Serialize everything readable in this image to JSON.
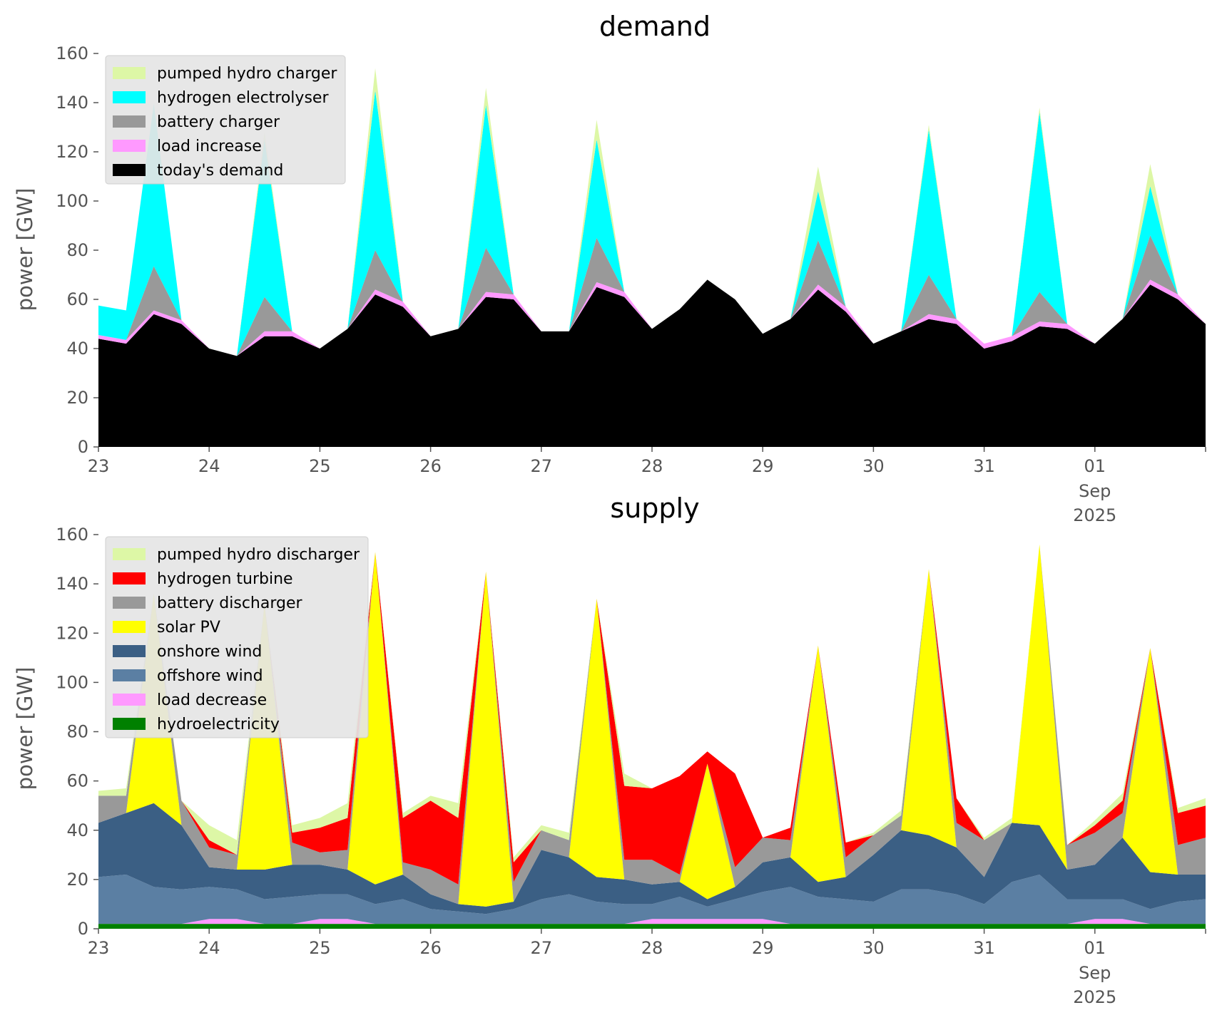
{
  "chart_data": [
    {
      "type": "area",
      "stacked": true,
      "title": "demand",
      "ylabel": "power [GW]",
      "ylim": [
        0,
        160
      ],
      "yticks": [
        0,
        20,
        40,
        60,
        80,
        100,
        120,
        140,
        160
      ],
      "xlim": [
        "2025-08-23",
        "2025-09-02"
      ],
      "xticks": [
        {
          "date": "2025-08-23",
          "label": "23"
        },
        {
          "date": "2025-08-24",
          "label": "24"
        },
        {
          "date": "2025-08-25",
          "label": "25"
        },
        {
          "date": "2025-08-26",
          "label": "26"
        },
        {
          "date": "2025-08-27",
          "label": "27"
        },
        {
          "date": "2025-08-28",
          "label": "28"
        },
        {
          "date": "2025-08-29",
          "label": "29"
        },
        {
          "date": "2025-08-30",
          "label": "30"
        },
        {
          "date": "2025-08-31",
          "label": "31"
        },
        {
          "date": "2025-09-01",
          "label": "01",
          "sub": [
            "Sep",
            "2025"
          ]
        }
      ],
      "grid": false,
      "legend_position": "top-left",
      "x": [
        "2025-08-23 00:00",
        "2025-08-23 06:00",
        "2025-08-23 12:00",
        "2025-08-23 18:00",
        "2025-08-24 00:00",
        "2025-08-24 06:00",
        "2025-08-24 12:00",
        "2025-08-24 18:00",
        "2025-08-25 00:00",
        "2025-08-25 06:00",
        "2025-08-25 12:00",
        "2025-08-25 18:00",
        "2025-08-26 00:00",
        "2025-08-26 06:00",
        "2025-08-26 12:00",
        "2025-08-26 18:00",
        "2025-08-27 00:00",
        "2025-08-27 06:00",
        "2025-08-27 12:00",
        "2025-08-27 18:00",
        "2025-08-28 00:00",
        "2025-08-28 06:00",
        "2025-08-28 12:00",
        "2025-08-28 18:00",
        "2025-08-29 00:00",
        "2025-08-29 06:00",
        "2025-08-29 12:00",
        "2025-08-29 18:00",
        "2025-08-30 00:00",
        "2025-08-30 06:00",
        "2025-08-30 12:00",
        "2025-08-30 18:00",
        "2025-08-31 00:00",
        "2025-08-31 06:00",
        "2025-08-31 12:00",
        "2025-08-31 18:00",
        "2025-09-01 00:00",
        "2025-09-01 06:00",
        "2025-09-01 12:00",
        "2025-09-01 18:00",
        "2025-09-02 00:00"
      ],
      "series": [
        {
          "name": "today's demand",
          "color": "#000000",
          "values": [
            44,
            42,
            54,
            50,
            40,
            37,
            45,
            45,
            40,
            48,
            62,
            57,
            45,
            48,
            61,
            60,
            47,
            47,
            65,
            61,
            48,
            56,
            68,
            60,
            46,
            52,
            64,
            55,
            42,
            47,
            52,
            50,
            40,
            43,
            49,
            48,
            42,
            52,
            66,
            60,
            50
          ]
        },
        {
          "name": "load increase",
          "color": "#ff99ff",
          "values": [
            1.5,
            1.5,
            1.5,
            1.5,
            0,
            0,
            2,
            2,
            0,
            0,
            2,
            2,
            0,
            0,
            2,
            2,
            0,
            0,
            2,
            2,
            0,
            0,
            0,
            0,
            0,
            0,
            2,
            2,
            0,
            0,
            2,
            2,
            2,
            2,
            2,
            2,
            0,
            0,
            2,
            2,
            0
          ]
        },
        {
          "name": "battery charger",
          "color": "#999999",
          "values": [
            0,
            0,
            18,
            0,
            0,
            0,
            14,
            0,
            0,
            0,
            16,
            0,
            0,
            0,
            18,
            0,
            0,
            0,
            18,
            0,
            0,
            0,
            0,
            0,
            0,
            0,
            18,
            0,
            0,
            0,
            16,
            0,
            0,
            0,
            12,
            0,
            0,
            0,
            18,
            0,
            0
          ]
        },
        {
          "name": "hydrogen electrolyser",
          "color": "#00ffff",
          "values": [
            12,
            12,
            66,
            0,
            0,
            0,
            64,
            0,
            0,
            0,
            65,
            0,
            0,
            0,
            58,
            0,
            0,
            0,
            40,
            0,
            0,
            0,
            0,
            0,
            0,
            0,
            20,
            0,
            0,
            0,
            59,
            0,
            0,
            0,
            73,
            0,
            0,
            0,
            20,
            0,
            0
          ]
        },
        {
          "name": "pumped hydro charger",
          "color": "#ddf7a6",
          "values": [
            0,
            0,
            0,
            0,
            0,
            0,
            3,
            0,
            0,
            0,
            9,
            0,
            0,
            0,
            7,
            0,
            0,
            0,
            8,
            0,
            0,
            0,
            0,
            0,
            0,
            0,
            10,
            0,
            0,
            0,
            2,
            0,
            0,
            0,
            2,
            0,
            0,
            0,
            9,
            0,
            0
          ]
        }
      ]
    },
    {
      "type": "area",
      "stacked": true,
      "title": "supply",
      "ylabel": "power [GW]",
      "ylim": [
        0,
        160
      ],
      "yticks": [
        0,
        20,
        40,
        60,
        80,
        100,
        120,
        140,
        160
      ],
      "xlim": [
        "2025-08-23",
        "2025-09-02"
      ],
      "xticks": [
        {
          "date": "2025-08-23",
          "label": "23"
        },
        {
          "date": "2025-08-24",
          "label": "24"
        },
        {
          "date": "2025-08-25",
          "label": "25"
        },
        {
          "date": "2025-08-26",
          "label": "26"
        },
        {
          "date": "2025-08-27",
          "label": "27"
        },
        {
          "date": "2025-08-28",
          "label": "28"
        },
        {
          "date": "2025-08-29",
          "label": "29"
        },
        {
          "date": "2025-08-30",
          "label": "30"
        },
        {
          "date": "2025-08-31",
          "label": "31"
        },
        {
          "date": "2025-09-01",
          "label": "01",
          "sub": [
            "Sep",
            "2025"
          ]
        }
      ],
      "grid": false,
      "legend_position": "top-left",
      "x": [
        "2025-08-23 00:00",
        "2025-08-23 06:00",
        "2025-08-23 12:00",
        "2025-08-23 18:00",
        "2025-08-24 00:00",
        "2025-08-24 06:00",
        "2025-08-24 12:00",
        "2025-08-24 18:00",
        "2025-08-25 00:00",
        "2025-08-25 06:00",
        "2025-08-25 12:00",
        "2025-08-25 18:00",
        "2025-08-26 00:00",
        "2025-08-26 06:00",
        "2025-08-26 12:00",
        "2025-08-26 18:00",
        "2025-08-27 00:00",
        "2025-08-27 06:00",
        "2025-08-27 12:00",
        "2025-08-27 18:00",
        "2025-08-28 00:00",
        "2025-08-28 06:00",
        "2025-08-28 12:00",
        "2025-08-28 18:00",
        "2025-08-29 00:00",
        "2025-08-29 06:00",
        "2025-08-29 12:00",
        "2025-08-29 18:00",
        "2025-08-30 00:00",
        "2025-08-30 06:00",
        "2025-08-30 12:00",
        "2025-08-30 18:00",
        "2025-08-31 00:00",
        "2025-08-31 06:00",
        "2025-08-31 12:00",
        "2025-08-31 18:00",
        "2025-09-01 00:00",
        "2025-09-01 06:00",
        "2025-09-01 12:00",
        "2025-09-01 18:00",
        "2025-09-02 00:00"
      ],
      "series": [
        {
          "name": "hydroelectricity",
          "color": "#008000",
          "values": [
            2,
            2,
            2,
            2,
            2,
            2,
            2,
            2,
            2,
            2,
            2,
            2,
            2,
            2,
            2,
            2,
            2,
            2,
            2,
            2,
            2,
            2,
            2,
            2,
            2,
            2,
            2,
            2,
            2,
            2,
            2,
            2,
            2,
            2,
            2,
            2,
            2,
            2,
            2,
            2,
            2
          ]
        },
        {
          "name": "load decrease",
          "color": "#ff99ff",
          "values": [
            0,
            0,
            0,
            0,
            2,
            2,
            0,
            0,
            2,
            2,
            0,
            0,
            0,
            0,
            0,
            0,
            0,
            0,
            0,
            0,
            2,
            2,
            2,
            2,
            2,
            0,
            0,
            0,
            0,
            0,
            0,
            0,
            0,
            0,
            0,
            0,
            2,
            2,
            0,
            0,
            0
          ]
        },
        {
          "name": "offshore wind",
          "color": "#5b7fa3",
          "values": [
            19,
            20,
            15,
            14,
            13,
            12,
            10,
            11,
            10,
            10,
            8,
            10,
            6,
            5,
            4,
            6,
            10,
            12,
            9,
            8,
            6,
            9,
            5,
            8,
            11,
            15,
            11,
            10,
            9,
            14,
            14,
            12,
            8,
            17,
            20,
            10,
            8,
            8,
            6,
            9,
            10
          ]
        },
        {
          "name": "onshore wind",
          "color": "#3b5f84",
          "values": [
            22,
            25,
            34,
            26,
            8,
            8,
            12,
            13,
            12,
            10,
            8,
            10,
            6,
            3,
            3,
            3,
            20,
            15,
            10,
            10,
            8,
            6,
            3,
            5,
            12,
            12,
            6,
            9,
            19,
            24,
            22,
            19,
            11,
            24,
            20,
            12,
            14,
            25,
            15,
            11,
            10
          ]
        },
        {
          "name": "solar PV",
          "color": "#ffff00",
          "values": [
            0,
            0,
            85,
            0,
            0,
            0,
            108,
            0,
            0,
            0,
            135,
            0,
            0,
            0,
            136,
            0,
            0,
            0,
            113,
            0,
            0,
            0,
            55,
            0,
            0,
            0,
            96,
            0,
            0,
            0,
            108,
            0,
            0,
            0,
            114,
            0,
            0,
            0,
            91,
            0,
            0
          ]
        },
        {
          "name": "battery discharger",
          "color": "#999999",
          "values": [
            11,
            7,
            0,
            10,
            8,
            6,
            0,
            9,
            5,
            8,
            0,
            5,
            10,
            8,
            0,
            8,
            8,
            7,
            0,
            8,
            10,
            3,
            0,
            8,
            10,
            7,
            0,
            8,
            8,
            6,
            0,
            10,
            15,
            0,
            0,
            10,
            13,
            10,
            0,
            12,
            15
          ]
        },
        {
          "name": "hydrogen turbine",
          "color": "#ff0000",
          "values": [
            0,
            0,
            0,
            0,
            3,
            0,
            0,
            4,
            10,
            13,
            0,
            18,
            28,
            27,
            0,
            8,
            0,
            0,
            0,
            30,
            29,
            40,
            5,
            38,
            0,
            5,
            0,
            6,
            0,
            0,
            0,
            10,
            0,
            0,
            0,
            0,
            3,
            5,
            0,
            13,
            13
          ]
        },
        {
          "name": "pumped hydro discharger",
          "color": "#ddf7a6",
          "values": [
            2,
            3,
            0,
            0,
            6,
            6,
            0,
            3,
            4,
            6,
            0,
            2,
            2,
            6,
            0,
            2,
            2,
            3,
            0,
            5,
            0,
            0,
            0,
            0,
            0,
            0,
            0,
            0,
            1,
            2,
            0,
            0,
            1,
            2,
            0,
            0,
            2,
            3,
            0,
            2,
            3
          ]
        }
      ],
      "legend_order": [
        "pumped hydro discharger",
        "hydrogen turbine",
        "battery discharger",
        "solar PV",
        "onshore wind",
        "offshore wind",
        "load decrease",
        "hydroelectricity"
      ]
    }
  ]
}
